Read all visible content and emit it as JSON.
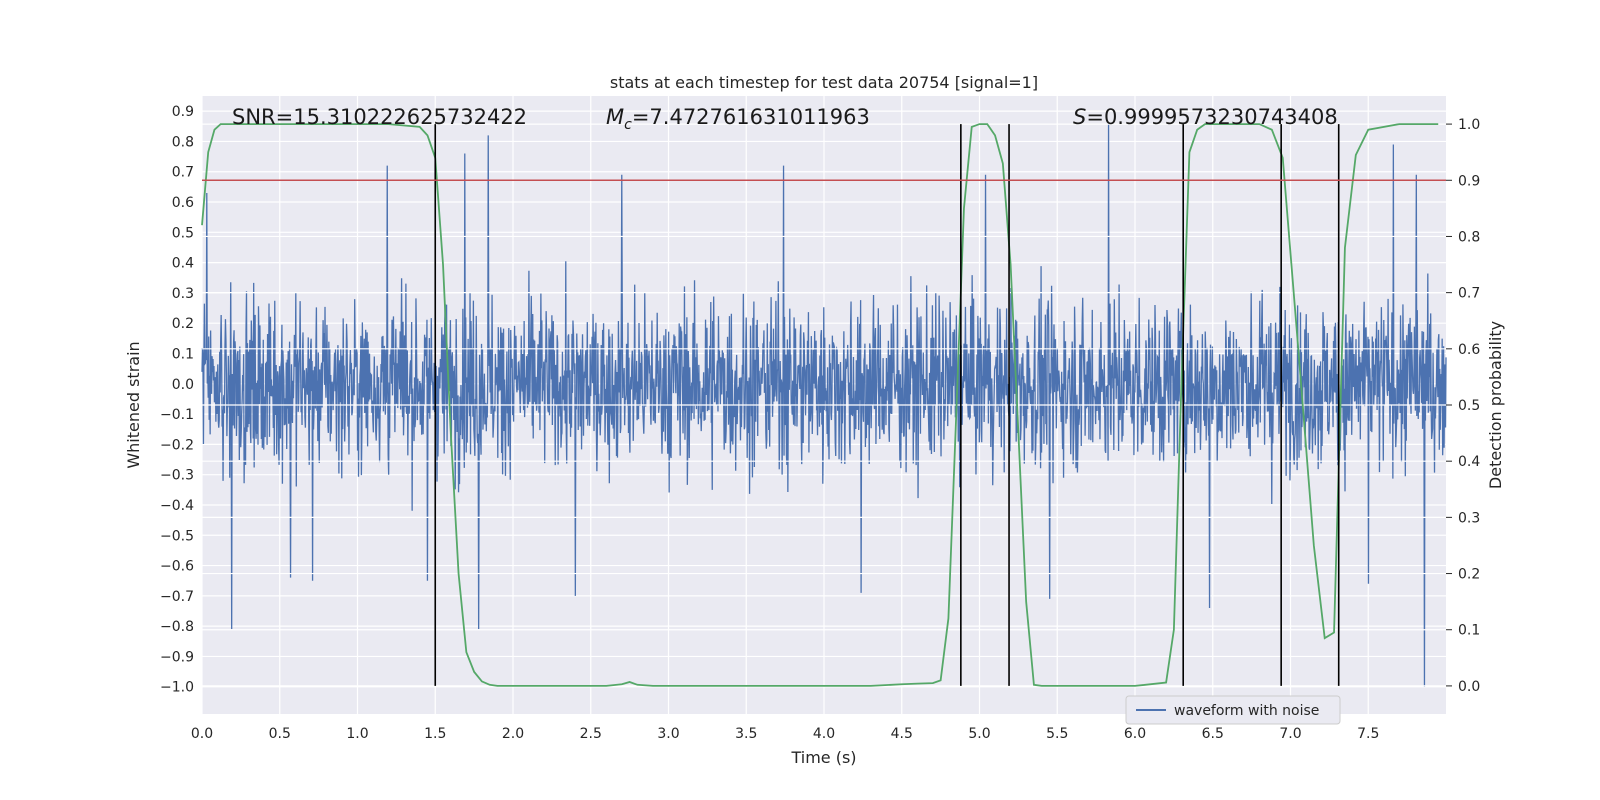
{
  "chart_data": {
    "type": "line",
    "title": "stats at each timestep for test data 20754 [signal=1]",
    "xlabel": "Time (s)",
    "ylabel_left": "Whitened strain",
    "ylabel_right": "Detection probability",
    "xlim": [
      0.0,
      8.0
    ],
    "ylim_left": [
      -1.09,
      0.95
    ],
    "ylim_right": [
      -0.05,
      1.05
    ],
    "x_ticks": [
      "0.0",
      "0.5",
      "1.0",
      "1.5",
      "2.0",
      "2.5",
      "3.0",
      "3.5",
      "4.0",
      "4.5",
      "5.0",
      "5.5",
      "6.0",
      "6.5",
      "7.0",
      "7.5"
    ],
    "y_ticks_left": [
      "0.9",
      "0.8",
      "0.7",
      "0.6",
      "0.5",
      "0.4",
      "0.3",
      "0.2",
      "0.1",
      "0.0",
      "−0.1",
      "−0.2",
      "−0.3",
      "−0.4",
      "−0.5",
      "−0.6",
      "−0.7",
      "−0.8",
      "−0.9",
      "−1.0"
    ],
    "y_ticks_right": [
      "1.0",
      "0.9",
      "0.8",
      "0.7",
      "0.6",
      "0.5",
      "0.4",
      "0.3",
      "0.2",
      "0.1",
      "0.0"
    ],
    "grid": true,
    "legend_position": "lower-right",
    "annotations": {
      "snr": "SNR=15.310222625732422",
      "mc_symbol": "M",
      "mc_sub": "c",
      "mc_value": "=7.472761631011963",
      "s_symbol": "S",
      "s_value": "=0.9999573230743408"
    },
    "series": [
      {
        "name": "waveform with noise",
        "axis": "left",
        "color": "#4c72b0",
        "style": "noise envelope",
        "envelope_typical": [
          -0.4,
          0.45
        ],
        "peaks": [
          {
            "x": 0.03,
            "y": 0.63
          },
          {
            "x": 0.19,
            "y": -0.81
          },
          {
            "x": 0.57,
            "y": -0.64
          },
          {
            "x": 0.71,
            "y": -0.65
          },
          {
            "x": 1.19,
            "y": 0.72
          },
          {
            "x": 1.45,
            "y": -0.65
          },
          {
            "x": 1.69,
            "y": 0.76
          },
          {
            "x": 1.78,
            "y": -0.81
          },
          {
            "x": 1.84,
            "y": 0.82
          },
          {
            "x": 2.4,
            "y": -0.7
          },
          {
            "x": 2.7,
            "y": 0.69
          },
          {
            "x": 3.74,
            "y": 0.72
          },
          {
            "x": 4.24,
            "y": -0.69
          },
          {
            "x": 5.04,
            "y": 0.69
          },
          {
            "x": 5.45,
            "y": -0.71
          },
          {
            "x": 5.83,
            "y": 0.86
          },
          {
            "x": 6.48,
            "y": -0.74
          },
          {
            "x": 7.5,
            "y": -0.66
          },
          {
            "x": 7.66,
            "y": 0.79
          },
          {
            "x": 7.81,
            "y": 0.69
          },
          {
            "x": 7.86,
            "y": -1.0
          }
        ]
      },
      {
        "name": "detection probability",
        "axis": "right",
        "color": "#55a868",
        "x": [
          0.0,
          0.04,
          0.08,
          0.12,
          0.2,
          0.4,
          0.8,
          1.2,
          1.4,
          1.45,
          1.5,
          1.55,
          1.6,
          1.65,
          1.7,
          1.75,
          1.8,
          1.85,
          1.9,
          2.0,
          2.2,
          2.4,
          2.6,
          2.7,
          2.75,
          2.8,
          2.9,
          3.0,
          3.3,
          3.6,
          4.0,
          4.3,
          4.5,
          4.6,
          4.7,
          4.75,
          4.8,
          4.85,
          4.9,
          4.95,
          5.0,
          5.05,
          5.1,
          5.15,
          5.2,
          5.25,
          5.3,
          5.35,
          5.4,
          5.45,
          5.6,
          6.0,
          6.2,
          6.25,
          6.3,
          6.35,
          6.4,
          6.45,
          6.5,
          6.6,
          6.8,
          6.88,
          6.95,
          7.05,
          7.15,
          7.22,
          7.28,
          7.35,
          7.42,
          7.5,
          7.7,
          7.95
        ],
        "y": [
          0.82,
          0.95,
          0.99,
          1.0,
          1.0,
          1.0,
          1.0,
          1.0,
          0.995,
          0.98,
          0.94,
          0.75,
          0.45,
          0.2,
          0.06,
          0.025,
          0.008,
          0.002,
          0.0,
          0.0,
          0.0,
          0.0,
          0.0,
          0.003,
          0.007,
          0.002,
          0.0,
          0.0,
          0.0,
          0.0,
          0.0,
          0.0,
          0.003,
          0.004,
          0.005,
          0.01,
          0.12,
          0.48,
          0.85,
          0.995,
          1.0,
          1.0,
          0.98,
          0.93,
          0.75,
          0.45,
          0.15,
          0.002,
          0.0,
          0.0,
          0.0,
          0.0,
          0.006,
          0.1,
          0.55,
          0.95,
          0.99,
          1.0,
          1.0,
          1.0,
          1.0,
          0.99,
          0.94,
          0.6,
          0.25,
          0.085,
          0.095,
          0.78,
          0.945,
          0.99,
          1.0,
          1.0
        ]
      }
    ],
    "threshold_line": {
      "value": 0.9,
      "axis": "right",
      "color": "#c44e52"
    },
    "vertical_lines": [
      1.5,
      4.88,
      5.19,
      6.31,
      6.94,
      7.31
    ]
  }
}
